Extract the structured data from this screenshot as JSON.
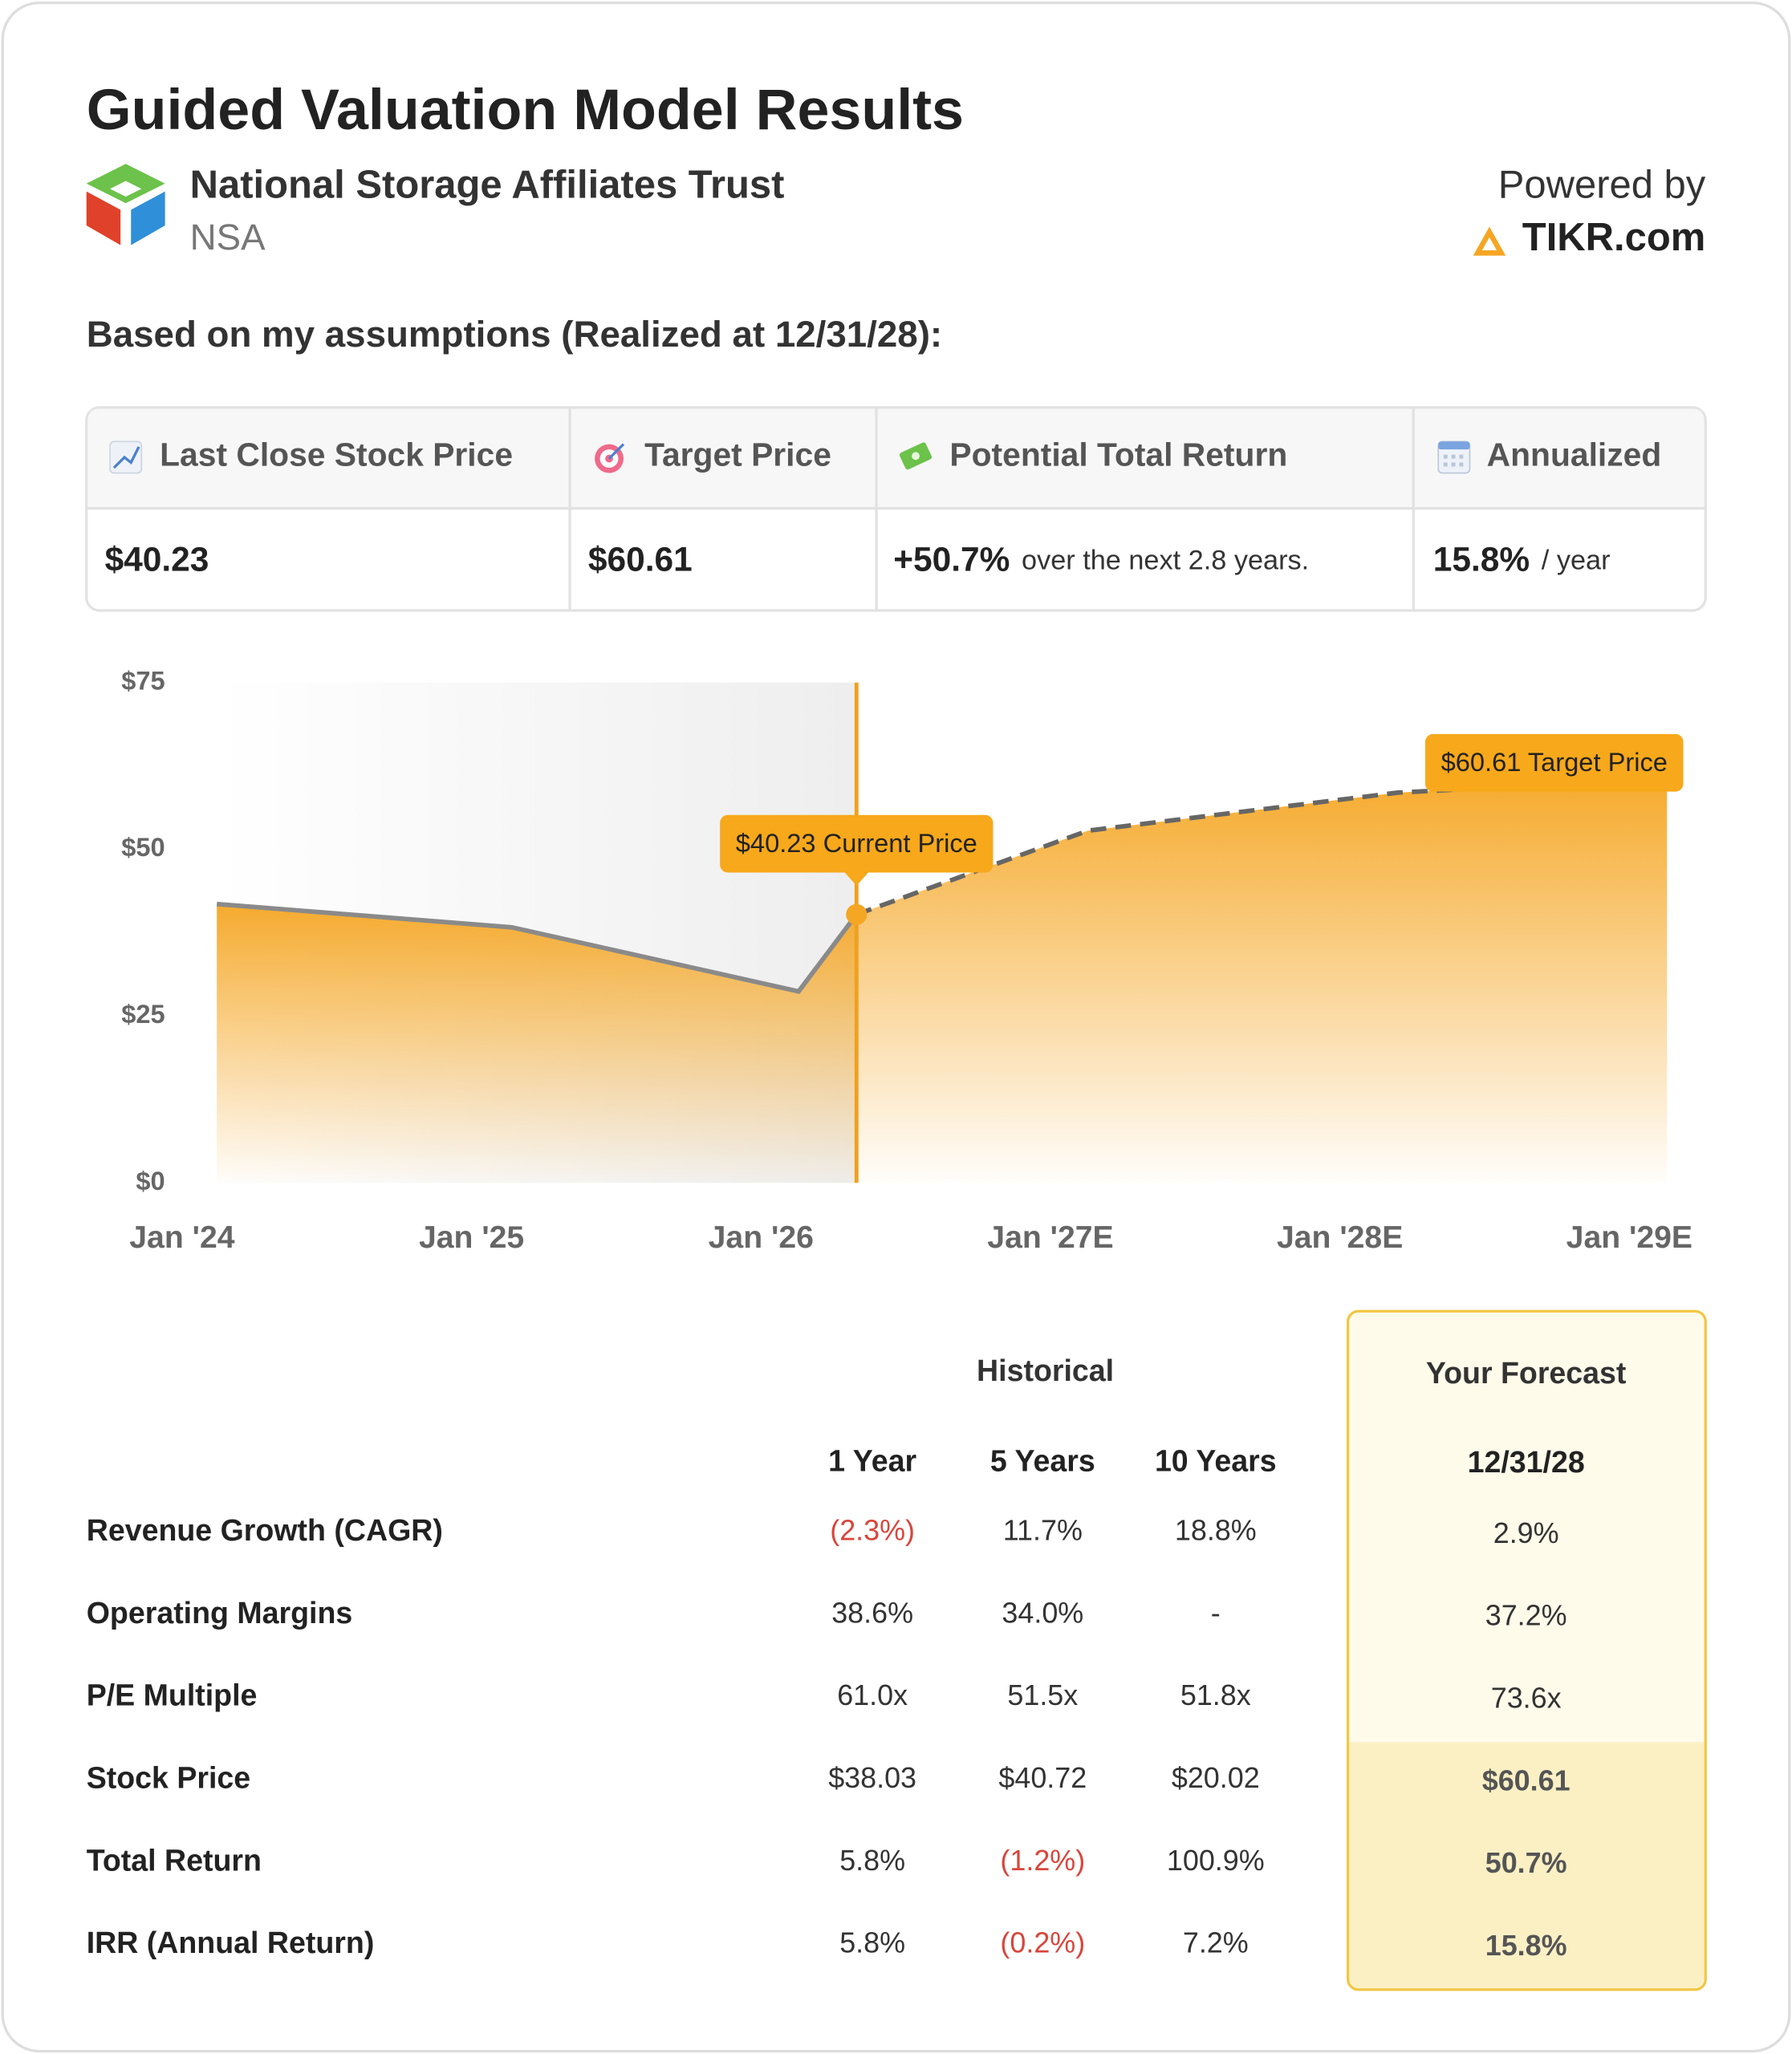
{
  "header": {
    "title": "Guided Valuation Model Results",
    "company": "National Storage Affiliates Trust",
    "ticker": "NSA",
    "powered_by": "Powered by",
    "brand": "TIKR.com"
  },
  "assumptions_heading": "Based on my assumptions (Realized at 12/31/28):",
  "summary": {
    "headers": [
      "Last Close Stock Price",
      "Target Price",
      "Potential Total Return",
      "Annualized"
    ],
    "cells": [
      {
        "value": "$40.23"
      },
      {
        "value": "$60.61"
      },
      {
        "value": "+50.7%",
        "note": "over the next 2.8 years."
      },
      {
        "value": "15.8%",
        "note": "/ year"
      }
    ]
  },
  "chart_data": {
    "type": "area",
    "ylim": [
      0,
      75
    ],
    "yticks": [
      {
        "value": 0,
        "label": "$0"
      },
      {
        "value": 25,
        "label": "$25"
      },
      {
        "value": 50,
        "label": "$50"
      },
      {
        "value": 75,
        "label": "$75"
      }
    ],
    "xlim": [
      0,
      5.15
    ],
    "xticks": [
      {
        "value": 0,
        "label": "Jan '24"
      },
      {
        "value": 1,
        "label": "Jan '25"
      },
      {
        "value": 2,
        "label": "Jan '26"
      },
      {
        "value": 3,
        "label": "Jan '27E"
      },
      {
        "value": 4,
        "label": "Jan '28E"
      },
      {
        "value": 5,
        "label": "Jan '29E"
      }
    ],
    "grid": false,
    "fill_color": "#f5a623",
    "series": [
      {
        "x": [
          0.12,
          1.14,
          2.13,
          2.33
        ],
        "values": [
          41.8,
          38.3,
          28.7,
          40.23
        ],
        "color": "#8a8a8a",
        "dashed": false
      },
      {
        "x": [
          2.33,
          3.13,
          4.2,
          5.13
        ],
        "values": [
          40.23,
          52.8,
          58.5,
          60.61
        ],
        "color": "#666666",
        "dashed": true
      }
    ],
    "annotations": [
      {
        "text": "$40.23 Current Price",
        "x": 2.33,
        "y": 40.23,
        "color": "#f7a81b"
      },
      {
        "text": "$60.61 Target Price",
        "x": 5.13,
        "y": 60.61,
        "color": "#f7a81b"
      }
    ]
  },
  "table": {
    "group_headers": [
      "Historical",
      "Your Forecast"
    ],
    "columns": [
      "1 Year",
      "5 Years",
      "10 Years",
      "12/31/28"
    ],
    "rows": [
      {
        "label": "Revenue Growth (CAGR)",
        "cells": [
          "(2.3%)",
          "11.7%",
          "18.8%",
          "2.9%"
        ]
      },
      {
        "label": "Operating Margins",
        "cells": [
          "38.6%",
          "34.0%",
          "-",
          "37.2%"
        ]
      },
      {
        "label": "P/E Multiple",
        "cells": [
          "61.0x",
          "51.5x",
          "51.8x",
          "73.6x"
        ]
      },
      {
        "label": "Stock Price",
        "cells": [
          "$38.03",
          "$40.72",
          "$20.02",
          "$60.61"
        ]
      },
      {
        "label": "Total Return",
        "cells": [
          "5.8%",
          "(1.2%)",
          "100.9%",
          "50.7%"
        ]
      },
      {
        "label": "IRR (Annual Return)",
        "cells": [
          "5.8%",
          "(0.2%)",
          "7.2%",
          "15.8%"
        ]
      }
    ]
  }
}
